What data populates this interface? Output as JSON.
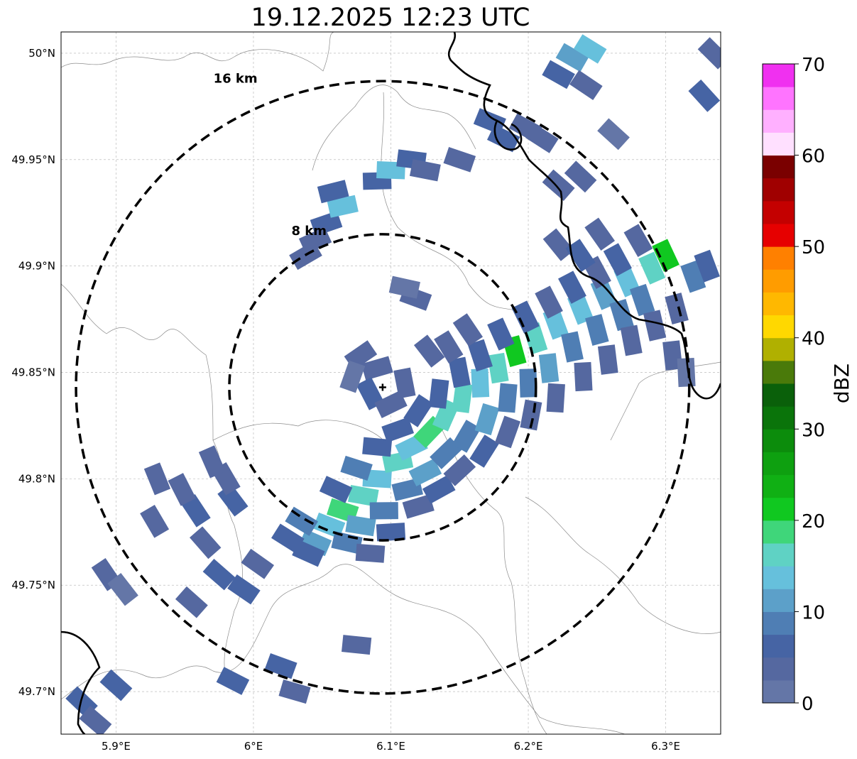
{
  "title": "19.12.2025 12:23 UTC",
  "map": {
    "lon_range": [
      5.86,
      6.34
    ],
    "lat_range": [
      49.68,
      50.01
    ],
    "lon_ticks": [
      {
        "value": 5.9,
        "label": "5.9°E"
      },
      {
        "value": 6.0,
        "label": "6°E"
      },
      {
        "value": 6.1,
        "label": "6.1°E"
      },
      {
        "value": 6.2,
        "label": "6.2°E"
      },
      {
        "value": 6.3,
        "label": "6.3°E"
      }
    ],
    "lat_ticks": [
      {
        "value": 50.0,
        "label": "50°N"
      },
      {
        "value": 49.95,
        "label": "49.95°N"
      },
      {
        "value": 49.9,
        "label": "49.9°N"
      },
      {
        "value": 49.85,
        "label": "49.85°N"
      },
      {
        "value": 49.8,
        "label": "49.8°N"
      },
      {
        "value": 49.75,
        "label": "49.75°N"
      },
      {
        "value": 49.7,
        "label": "49.7°N"
      }
    ],
    "radar_center": {
      "lon": 6.094,
      "lat": 49.843
    },
    "rings": [
      {
        "label": "8 km",
        "radius_km": 8
      },
      {
        "label": "16 km",
        "radius_km": 16
      }
    ],
    "grid": true,
    "precip_cells": [
      {
        "lon": 5.985,
        "lat": 49.79,
        "dbz": 5
      },
      {
        "lon": 5.98,
        "lat": 49.8,
        "dbz": 3
      },
      {
        "lon": 5.97,
        "lat": 49.808,
        "dbz": 4
      },
      {
        "lon": 5.958,
        "lat": 49.785,
        "dbz": 6
      },
      {
        "lon": 5.948,
        "lat": 49.795,
        "dbz": 4
      },
      {
        "lon": 5.965,
        "lat": 49.77,
        "dbz": 3
      },
      {
        "lon": 5.975,
        "lat": 49.755,
        "dbz": 6
      },
      {
        "lon": 5.993,
        "lat": 49.748,
        "dbz": 5
      },
      {
        "lon": 5.955,
        "lat": 49.742,
        "dbz": 4
      },
      {
        "lon": 6.003,
        "lat": 49.76,
        "dbz": 3
      },
      {
        "lon": 5.893,
        "lat": 49.755,
        "dbz": 3
      },
      {
        "lon": 5.905,
        "lat": 49.748,
        "dbz": 2
      },
      {
        "lon": 5.93,
        "lat": 49.8,
        "dbz": 3
      },
      {
        "lon": 5.928,
        "lat": 49.78,
        "dbz": 4
      },
      {
        "lon": 5.9,
        "lat": 49.703,
        "dbz": 5
      },
      {
        "lon": 5.875,
        "lat": 49.695,
        "dbz": 6
      },
      {
        "lon": 5.885,
        "lat": 49.686,
        "dbz": 4
      },
      {
        "lon": 6.02,
        "lat": 49.712,
        "dbz": 5
      },
      {
        "lon": 6.03,
        "lat": 49.7,
        "dbz": 4
      },
      {
        "lon": 6.075,
        "lat": 49.722,
        "dbz": 3
      },
      {
        "lon": 5.985,
        "lat": 49.705,
        "dbz": 6
      },
      {
        "lon": 6.055,
        "lat": 49.778,
        "dbz": 14
      },
      {
        "lon": 6.065,
        "lat": 49.785,
        "dbz": 18
      },
      {
        "lon": 6.08,
        "lat": 49.792,
        "dbz": 15
      },
      {
        "lon": 6.09,
        "lat": 49.8,
        "dbz": 14
      },
      {
        "lon": 6.105,
        "lat": 49.808,
        "dbz": 16
      },
      {
        "lon": 6.115,
        "lat": 49.815,
        "dbz": 14
      },
      {
        "lon": 6.128,
        "lat": 49.822,
        "dbz": 18
      },
      {
        "lon": 6.14,
        "lat": 49.83,
        "dbz": 15
      },
      {
        "lon": 6.152,
        "lat": 49.838,
        "dbz": 17
      },
      {
        "lon": 6.165,
        "lat": 49.845,
        "dbz": 14
      },
      {
        "lon": 6.178,
        "lat": 49.852,
        "dbz": 16
      },
      {
        "lon": 6.19,
        "lat": 49.86,
        "dbz": 20
      },
      {
        "lon": 6.205,
        "lat": 49.866,
        "dbz": 15
      },
      {
        "lon": 6.22,
        "lat": 49.873,
        "dbz": 14
      },
      {
        "lon": 6.238,
        "lat": 49.88,
        "dbz": 13
      },
      {
        "lon": 6.255,
        "lat": 49.887,
        "dbz": 12
      },
      {
        "lon": 6.272,
        "lat": 49.893,
        "dbz": 14
      },
      {
        "lon": 6.29,
        "lat": 49.899,
        "dbz": 16
      },
      {
        "lon": 6.3,
        "lat": 49.905,
        "dbz": 20
      },
      {
        "lon": 6.045,
        "lat": 49.77,
        "dbz": 12
      },
      {
        "lon": 6.035,
        "lat": 49.78,
        "dbz": 9
      },
      {
        "lon": 6.068,
        "lat": 49.77,
        "dbz": 8
      },
      {
        "lon": 6.078,
        "lat": 49.778,
        "dbz": 10
      },
      {
        "lon": 6.095,
        "lat": 49.785,
        "dbz": 9
      },
      {
        "lon": 6.112,
        "lat": 49.795,
        "dbz": 8
      },
      {
        "lon": 6.125,
        "lat": 49.803,
        "dbz": 11
      },
      {
        "lon": 6.14,
        "lat": 49.812,
        "dbz": 9
      },
      {
        "lon": 6.155,
        "lat": 49.82,
        "dbz": 8
      },
      {
        "lon": 6.17,
        "lat": 49.828,
        "dbz": 10
      },
      {
        "lon": 6.185,
        "lat": 49.838,
        "dbz": 9
      },
      {
        "lon": 6.2,
        "lat": 49.845,
        "dbz": 8
      },
      {
        "lon": 6.215,
        "lat": 49.852,
        "dbz": 10
      },
      {
        "lon": 6.232,
        "lat": 49.862,
        "dbz": 9
      },
      {
        "lon": 6.25,
        "lat": 49.87,
        "dbz": 8
      },
      {
        "lon": 6.268,
        "lat": 49.877,
        "dbz": 9
      },
      {
        "lon": 6.283,
        "lat": 49.884,
        "dbz": 8
      },
      {
        "lon": 6.06,
        "lat": 49.795,
        "dbz": 7
      },
      {
        "lon": 6.075,
        "lat": 49.805,
        "dbz": 8
      },
      {
        "lon": 6.09,
        "lat": 49.815,
        "dbz": 6
      },
      {
        "lon": 6.105,
        "lat": 49.823,
        "dbz": 7
      },
      {
        "lon": 6.12,
        "lat": 49.832,
        "dbz": 6
      },
      {
        "lon": 6.135,
        "lat": 49.84,
        "dbz": 5
      },
      {
        "lon": 6.15,
        "lat": 49.85,
        "dbz": 6
      },
      {
        "lon": 6.165,
        "lat": 49.858,
        "dbz": 5
      },
      {
        "lon": 6.18,
        "lat": 49.868,
        "dbz": 6
      },
      {
        "lon": 6.198,
        "lat": 49.876,
        "dbz": 5
      },
      {
        "lon": 6.215,
        "lat": 49.883,
        "dbz": 4
      },
      {
        "lon": 6.232,
        "lat": 49.89,
        "dbz": 5
      },
      {
        "lon": 6.25,
        "lat": 49.897,
        "dbz": 4
      },
      {
        "lon": 6.265,
        "lat": 49.903,
        "dbz": 5
      },
      {
        "lon": 6.04,
        "lat": 49.765,
        "dbz": 5
      },
      {
        "lon": 6.025,
        "lat": 49.772,
        "dbz": 7
      },
      {
        "lon": 6.085,
        "lat": 49.765,
        "dbz": 4
      },
      {
        "lon": 6.1,
        "lat": 49.775,
        "dbz": 5
      },
      {
        "lon": 6.12,
        "lat": 49.787,
        "dbz": 4
      },
      {
        "lon": 6.135,
        "lat": 49.795,
        "dbz": 6
      },
      {
        "lon": 6.15,
        "lat": 49.804,
        "dbz": 4
      },
      {
        "lon": 6.168,
        "lat": 49.813,
        "dbz": 5
      },
      {
        "lon": 6.185,
        "lat": 49.822,
        "dbz": 4
      },
      {
        "lon": 6.202,
        "lat": 49.83,
        "dbz": 3
      },
      {
        "lon": 6.22,
        "lat": 49.838,
        "dbz": 4
      },
      {
        "lon": 6.24,
        "lat": 49.848,
        "dbz": 3
      },
      {
        "lon": 6.258,
        "lat": 49.856,
        "dbz": 4
      },
      {
        "lon": 6.275,
        "lat": 49.865,
        "dbz": 3
      },
      {
        "lon": 6.292,
        "lat": 49.872,
        "dbz": 4
      },
      {
        "lon": 6.308,
        "lat": 49.88,
        "dbz": 3
      },
      {
        "lon": 6.32,
        "lat": 49.895,
        "dbz": 9
      },
      {
        "lon": 6.33,
        "lat": 49.9,
        "dbz": 5
      },
      {
        "lon": 6.305,
        "lat": 49.858,
        "dbz": 3
      },
      {
        "lon": 6.315,
        "lat": 49.85,
        "dbz": 2
      },
      {
        "lon": 6.078,
        "lat": 49.858,
        "dbz": 4
      },
      {
        "lon": 6.09,
        "lat": 49.852,
        "dbz": 3
      },
      {
        "lon": 6.085,
        "lat": 49.84,
        "dbz": 5
      },
      {
        "lon": 6.1,
        "lat": 49.835,
        "dbz": 3
      },
      {
        "lon": 6.11,
        "lat": 49.845,
        "dbz": 4
      },
      {
        "lon": 6.072,
        "lat": 49.848,
        "dbz": 2
      },
      {
        "lon": 6.118,
        "lat": 49.885,
        "dbz": 3
      },
      {
        "lon": 6.11,
        "lat": 49.89,
        "dbz": 2
      },
      {
        "lon": 6.128,
        "lat": 49.86,
        "dbz": 3
      },
      {
        "lon": 6.142,
        "lat": 49.862,
        "dbz": 4
      },
      {
        "lon": 6.156,
        "lat": 49.87,
        "dbz": 3
      },
      {
        "lon": 6.053,
        "lat": 49.92,
        "dbz": 5
      },
      {
        "lon": 6.065,
        "lat": 49.928,
        "dbz": 14
      },
      {
        "lon": 6.058,
        "lat": 49.935,
        "dbz": 6
      },
      {
        "lon": 6.045,
        "lat": 49.912,
        "dbz": 4
      },
      {
        "lon": 6.038,
        "lat": 49.905,
        "dbz": 3
      },
      {
        "lon": 6.09,
        "lat": 49.94,
        "dbz": 6
      },
      {
        "lon": 6.1,
        "lat": 49.945,
        "dbz": 13
      },
      {
        "lon": 6.115,
        "lat": 49.95,
        "dbz": 5
      },
      {
        "lon": 6.125,
        "lat": 49.945,
        "dbz": 4
      },
      {
        "lon": 6.15,
        "lat": 49.95,
        "dbz": 3
      },
      {
        "lon": 6.172,
        "lat": 49.968,
        "dbz": 5
      },
      {
        "lon": 6.182,
        "lat": 49.96,
        "dbz": 6
      },
      {
        "lon": 6.198,
        "lat": 49.965,
        "dbz": 4
      },
      {
        "lon": 6.21,
        "lat": 49.96,
        "dbz": 3
      },
      {
        "lon": 6.222,
        "lat": 49.99,
        "dbz": 6
      },
      {
        "lon": 6.232,
        "lat": 49.998,
        "dbz": 12
      },
      {
        "lon": 6.245,
        "lat": 50.002,
        "dbz": 14
      },
      {
        "lon": 6.242,
        "lat": 49.985,
        "dbz": 4
      },
      {
        "lon": 6.328,
        "lat": 49.98,
        "dbz": 5
      },
      {
        "lon": 6.335,
        "lat": 50.0,
        "dbz": 4
      },
      {
        "lon": 6.222,
        "lat": 49.938,
        "dbz": 3
      },
      {
        "lon": 6.238,
        "lat": 49.942,
        "dbz": 4
      },
      {
        "lon": 6.262,
        "lat": 49.962,
        "dbz": 2
      },
      {
        "lon": 6.222,
        "lat": 49.91,
        "dbz": 4
      },
      {
        "lon": 6.238,
        "lat": 49.905,
        "dbz": 5
      },
      {
        "lon": 6.252,
        "lat": 49.915,
        "dbz": 3
      },
      {
        "lon": 6.28,
        "lat": 49.912,
        "dbz": 4
      }
    ]
  },
  "colorbar": {
    "label": "dBZ",
    "min": 0,
    "max": 70,
    "ticks": [
      {
        "value": 0,
        "label": "0"
      },
      {
        "value": 10,
        "label": "10"
      },
      {
        "value": 20,
        "label": "20"
      },
      {
        "value": 30,
        "label": "30"
      },
      {
        "value": 40,
        "label": "40"
      },
      {
        "value": 50,
        "label": "50"
      },
      {
        "value": 60,
        "label": "60"
      },
      {
        "value": 70,
        "label": "70"
      }
    ],
    "bins": [
      "#6476a7",
      "#5568a0",
      "#4664a4",
      "#4f7eb4",
      "#5ca0c9",
      "#66c0dc",
      "#5fd2c4",
      "#3fd67a",
      "#10c820",
      "#10b014",
      "#0ea010",
      "#0c8c0c",
      "#0a740a",
      "#0a600a",
      "#4a7a0a",
      "#b0b000",
      "#ffd800",
      "#ffb800",
      "#ff9c00",
      "#ff8000",
      "#e60000",
      "#c40000",
      "#a00000",
      "#7a0000",
      "#ffe0ff",
      "#ffb0ff",
      "#ff74ff",
      "#f030f0"
    ]
  }
}
